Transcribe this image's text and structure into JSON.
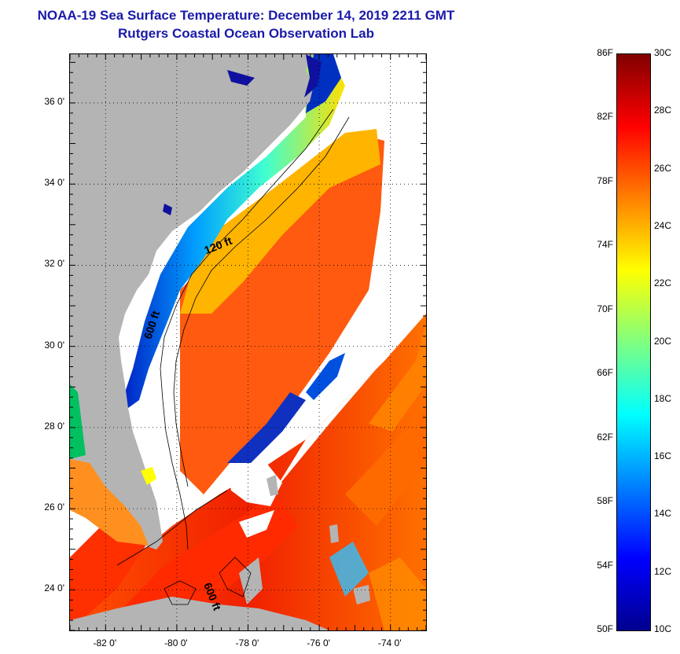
{
  "title": {
    "line1": "NOAA-19 Sea Surface Temperature:  December 14, 2019 2211 GMT",
    "line2": "Rutgers Coastal Ocean Observation Lab"
  },
  "map": {
    "lon_range": [
      -83,
      -73
    ],
    "lat_range": [
      23,
      37.2
    ],
    "lat_labels": [
      {
        "lat": 36,
        "text": "36 0'"
      },
      {
        "lat": 34,
        "text": "34 0'"
      },
      {
        "lat": 32,
        "text": "32 0'"
      },
      {
        "lat": 30,
        "text": "30 0'"
      },
      {
        "lat": 28,
        "text": "28 0'"
      },
      {
        "lat": 26,
        "text": "26 0'"
      },
      {
        "lat": 24,
        "text": "24 0'"
      }
    ],
    "lon_labels": [
      {
        "lon": -82,
        "text": "-82 0'"
      },
      {
        "lon": -80,
        "text": "-80 0'"
      },
      {
        "lon": -78,
        "text": "-78 0'"
      },
      {
        "lon": -76,
        "text": "-76 0'"
      },
      {
        "lon": -74,
        "text": "-74 0'"
      }
    ],
    "contour_labels": [
      {
        "text": "120 ft",
        "lon": -78.8,
        "lat": 32.4,
        "angle": -22
      },
      {
        "text": "600 ft",
        "lon": -80.6,
        "lat": 30.5,
        "angle": -72
      },
      {
        "text": "600 ft",
        "lon": -79.1,
        "lat": 23.8,
        "angle": 68
      }
    ],
    "land_color": "#b4b4b4",
    "cloud_color": "#ffffff"
  },
  "colorbar": {
    "range_c": [
      10,
      30
    ],
    "range_f": [
      50,
      86
    ],
    "labels_f": [
      "86F",
      "82F",
      "78F",
      "74F",
      "70F",
      "66F",
      "62F",
      "58F",
      "54F",
      "50F"
    ],
    "labels_c": [
      "30C",
      "28C",
      "26C",
      "24C",
      "22C",
      "20C",
      "18C",
      "16C",
      "14C",
      "12C",
      "10C"
    ],
    "colors": [
      "#00008f",
      "#0000ff",
      "#0080ff",
      "#00ffff",
      "#80ff80",
      "#ffff00",
      "#ff8000",
      "#ff0000",
      "#800000"
    ]
  }
}
